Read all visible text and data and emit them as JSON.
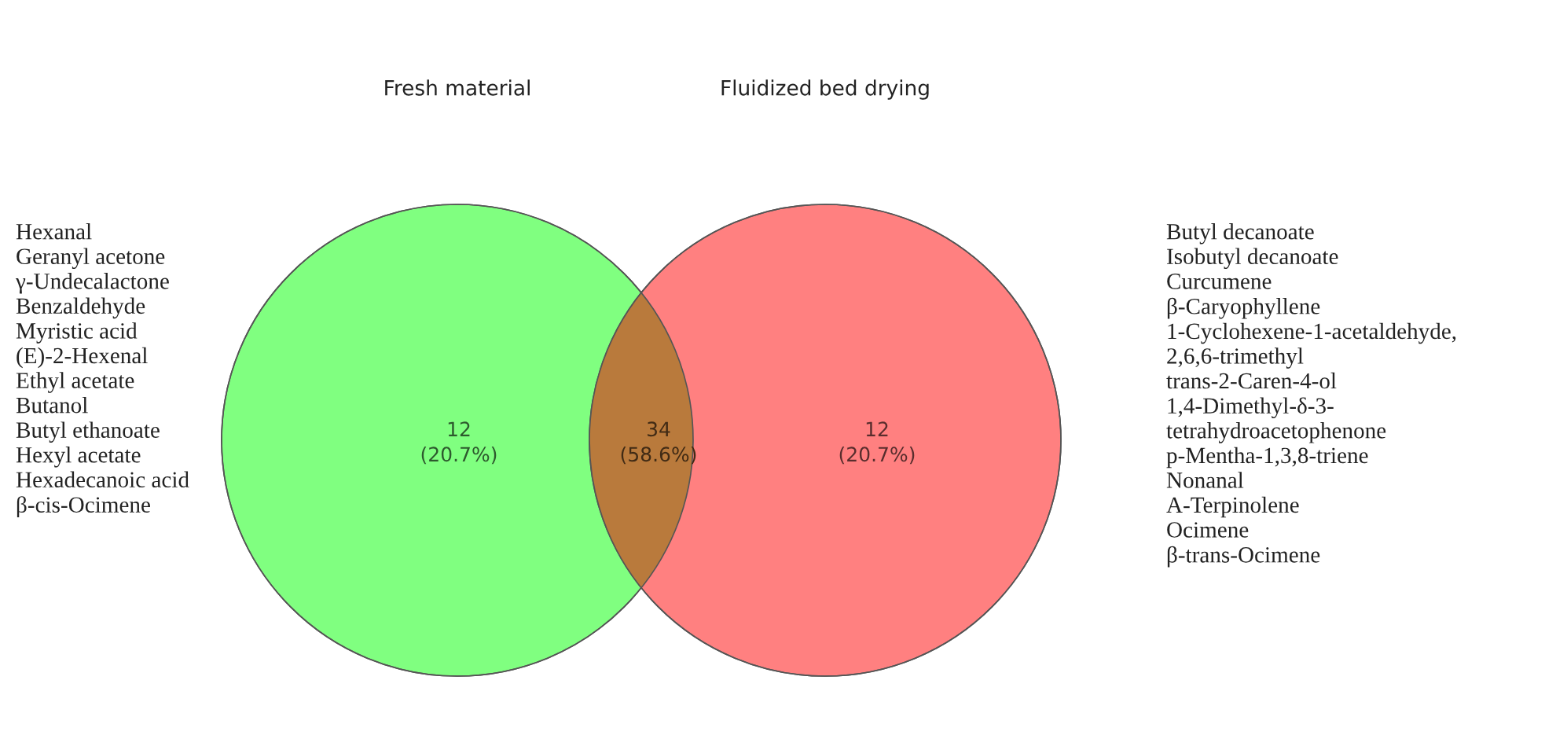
{
  "chart_data": {
    "type": "other",
    "categories": [
      "Fresh material",
      null,
      "Fluidized bed drying"
    ],
    "values": [
      12,
      34,
      12
    ],
    "data_labels": true,
    "colors": [
      "#80ff80",
      "#b97a3c",
      "#ff8080"
    ],
    "annotations": [
      "Hexanal\nGeranyl acetone\nγ-Undecalactone\nBenzaldehyde\nMyristic acid\n(E)-2-Hexenal\nEthyl acetate\nButanol\nButyl ethanoate\nHexyl acetate\nHexadecanoic acid\nβ-cis-Ocimene",
      "Butyl decanoate\nIsobutyl decanoate\nCurcumene\nβ-Caryophyllene\n1-Cyclohexene-1-acetaldehyde,\n2,6,6-trimethyl\ntrans-2-Caren-4-ol\n1,4-Dimethyl-δ-3-\ntetrahydroacetophenone\np-Mentha-1,3,8-triene\nNonanal\nA-Terpinolene\nOcimene\nβ-trans-Ocimene",
      "(20.7%)",
      "(58.6%)",
      "(20.7%)"
    ]
  }
}
